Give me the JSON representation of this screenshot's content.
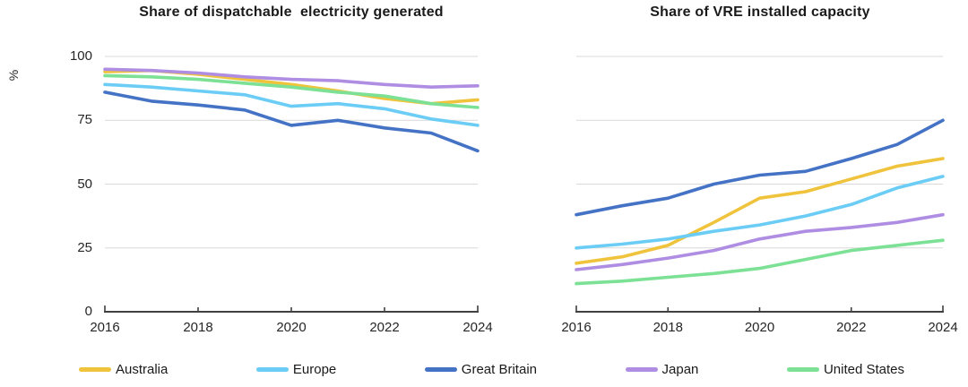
{
  "colors": {
    "grid": "#D9D9D9",
    "axis": "#404040",
    "axis_text": "#262626",
    "title_text": "#1A1A1A"
  },
  "legend": {
    "position": "bottom",
    "items": [
      {
        "label": "Australia",
        "color": "#F0C33C"
      },
      {
        "label": "Europe",
        "color": "#6BCDF5"
      },
      {
        "label": "Great Britain",
        "color": "#4472C4"
      },
      {
        "label": "Japan",
        "color": "#AE8DE2"
      },
      {
        "label": "United States",
        "color": "#7CE195"
      }
    ]
  },
  "chart_data": [
    {
      "type": "line",
      "title": "Share of dispatchable  electricity generated",
      "ylabel": "%",
      "x": [
        2016,
        2017,
        2018,
        2019,
        2020,
        2021,
        2022,
        2023,
        2024
      ],
      "x_tick_labels": [
        "2016",
        "2018",
        "2020",
        "2022",
        "2024"
      ],
      "y_ticks": [
        0,
        25,
        50,
        75,
        100
      ],
      "y_tick_labels_visible": true,
      "ylim": [
        0,
        100
      ],
      "grid": "horizontal",
      "legend_position": "shared-bottom",
      "series": [
        {
          "name": "Australia",
          "color": "#F0C33C",
          "values": [
            94,
            94.5,
            93,
            91,
            89,
            86.5,
            83.5,
            81.5,
            83
          ]
        },
        {
          "name": "Europe",
          "color": "#6BCDF5",
          "values": [
            89,
            88,
            86.5,
            85,
            80.5,
            81.5,
            79.5,
            75.5,
            73
          ]
        },
        {
          "name": "Great Britain",
          "color": "#4472C4",
          "values": [
            86,
            82.5,
            81,
            79,
            73,
            75,
            72,
            70,
            63
          ]
        },
        {
          "name": "Japan",
          "color": "#AE8DE2",
          "values": [
            95,
            94.5,
            93.5,
            92,
            91,
            90.5,
            89,
            88,
            88.5
          ]
        },
        {
          "name": "United States",
          "color": "#7CE195",
          "values": [
            92.5,
            92,
            91,
            89.5,
            88,
            86,
            84.5,
            81.5,
            80
          ]
        }
      ]
    },
    {
      "type": "line",
      "title": "Share of VRE installed capacity",
      "ylabel": "",
      "x": [
        2016,
        2017,
        2018,
        2019,
        2020,
        2021,
        2022,
        2023,
        2024
      ],
      "x_tick_labels": [
        "2016",
        "2018",
        "2020",
        "2022",
        "2024"
      ],
      "y_ticks": [
        0,
        25,
        50,
        75,
        100
      ],
      "y_tick_labels_visible": false,
      "ylim": [
        0,
        100
      ],
      "grid": "horizontal",
      "legend_position": "shared-bottom",
      "series": [
        {
          "name": "Australia",
          "color": "#F0C33C",
          "values": [
            19,
            21.5,
            26,
            35,
            44.5,
            47,
            52,
            57,
            60
          ]
        },
        {
          "name": "Europe",
          "color": "#6BCDF5",
          "values": [
            25,
            26.5,
            28.5,
            31.5,
            34,
            37.5,
            42,
            48.5,
            53
          ]
        },
        {
          "name": "Great Britain",
          "color": "#4472C4",
          "values": [
            38,
            41.5,
            44.5,
            50,
            53.5,
            55,
            60,
            65.5,
            75
          ]
        },
        {
          "name": "Japan",
          "color": "#AE8DE2",
          "values": [
            16.5,
            18.5,
            21,
            24,
            28.5,
            31.5,
            33,
            35,
            38
          ]
        },
        {
          "name": "United States",
          "color": "#7CE195",
          "values": [
            11,
            12,
            13.5,
            15,
            17,
            20.5,
            24,
            26,
            28
          ]
        }
      ]
    }
  ]
}
